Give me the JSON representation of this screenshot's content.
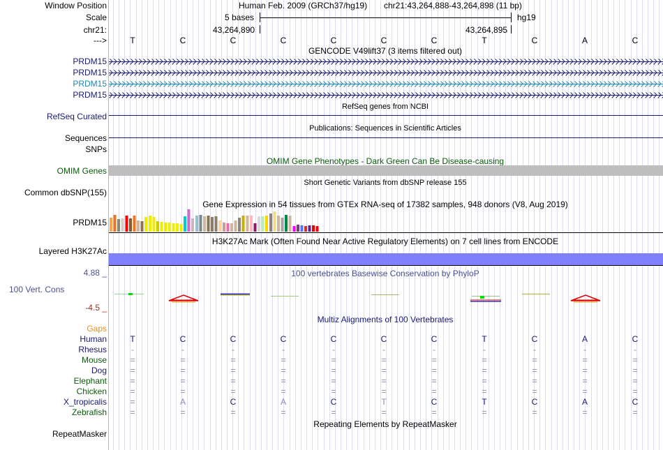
{
  "header": {
    "window_label": "Window Position",
    "scale_label": "Scale",
    "chrom_label": "chr21:",
    "arrow_label": "--->",
    "assembly_text": "Human Feb. 2009 (GRCh37/hg19)",
    "position_text": "chr21:43,264,888-43,264,898 (11 bp)",
    "scale_text": "5 bases",
    "scale_db": "hg19",
    "coord_left": "43,264,890",
    "coord_right": "43,264,895"
  },
  "bases": [
    "T",
    "C",
    "C",
    "C",
    "C",
    "C",
    "C",
    "T",
    "C",
    "A",
    "C"
  ],
  "tracks": {
    "gencode_title": "GENCODE V49lift37 (3 items filtered out)",
    "gencode_items": [
      "PRDM15",
      "PRDM15",
      "PRDM15",
      "PRDM15"
    ],
    "refseq_label": "RefSeq Curated",
    "refseq_title": "RefSeq genes from NCBI",
    "sequences_label": "Sequences",
    "pubs_title": "Publications: Sequences in Scientific Articles",
    "snps_label": "SNPs",
    "omim_title": "OMIM Gene Phenotypes - Dark Green Can Be Disease-causing",
    "omim_label": "OMIM Genes",
    "dbsnp_title": "Short Genetic Variants from dbSNP release 155",
    "dbsnp_label": "Common dbSNP(155)",
    "gtex_title": "Gene Expression in 54 tissues from GTEx RNA-seq of 17382 samples, 948 donors (V8, Aug 2019)",
    "gtex_label": "PRDM15",
    "h3k27_title": "H3K27Ac Mark (Often Found Near Active Regulatory Elements) on 7 cell lines from ENCODE",
    "h3k27_label": "Layered H3K27Ac",
    "cons_title": "100 vertebrates Basewise Conservation by PhyloP",
    "cons_label": "100 Vert. Cons",
    "cons_max": "4.88 _",
    "cons_min": "-4.5 _",
    "multiz_title": "Multiz Alignments of 100 Vertebrates",
    "gaps_label": "Gaps",
    "repeat_title": "Repeating Elements by RepeatMasker",
    "repeat_label": "RepeatMasker"
  },
  "alignment": [
    {
      "species": "Human",
      "seq": [
        "T",
        "C",
        "C",
        "C",
        "C",
        "C",
        "C",
        "T",
        "C",
        "A",
        "C"
      ]
    },
    {
      "species": "Rhesus",
      "seq": [
        "-",
        "-",
        "-",
        "-",
        "-",
        "-",
        "-",
        "-",
        "-",
        "-",
        "-"
      ]
    },
    {
      "species": "Mouse",
      "seq": [
        "=",
        "=",
        "=",
        "=",
        "=",
        "=",
        "=",
        "=",
        "=",
        "=",
        "="
      ]
    },
    {
      "species": "Dog",
      "seq": [
        "=",
        "=",
        "=",
        "=",
        "=",
        "=",
        "=",
        "=",
        "=",
        "=",
        "="
      ]
    },
    {
      "species": "Elephant",
      "seq": [
        "=",
        "=",
        "=",
        "=",
        "=",
        "=",
        "=",
        "=",
        "=",
        "=",
        "="
      ]
    },
    {
      "species": "Chicken",
      "seq": [
        "=",
        "=",
        "=",
        "=",
        "=",
        "=",
        "=",
        "=",
        "=",
        "=",
        "="
      ]
    },
    {
      "species": "X_tropicalis",
      "seq": [
        "=",
        "A",
        "C",
        "A",
        "C",
        "T",
        "C",
        "T",
        "C",
        "A",
        "C"
      ]
    },
    {
      "species": "Zebrafish",
      "seq": [
        "=",
        "=",
        "=",
        "=",
        "=",
        "=",
        "=",
        "=",
        "=",
        "=",
        "="
      ]
    }
  ],
  "colors": {
    "navy": "#191970",
    "green": "#0b5a0b",
    "omim_bar": "#bebebe",
    "h3k27_bar": "#8080ff",
    "gtex": [
      "#ffa54f",
      "#ee7621",
      "#8b8878",
      "#cdcdc1",
      "#ff0000",
      "#8b5a2b",
      "#ee7621",
      "#cdb79e",
      "#8b7355",
      "#eeee00",
      "#eeee00",
      "#eeee00",
      "#cdcd00",
      "#eeee00",
      "#eeee00",
      "#eeee00",
      "#eeee00",
      "#eeee00",
      "#eeee00",
      "#00cdcd",
      "#cd69c9",
      "#cdb7b5",
      "#9ac0cd",
      "#7a8b8b",
      "#cdb79e",
      "#8b7355",
      "#8b7d6b",
      "#8b7d6b",
      "#ffd39b",
      "#cd9b9b",
      "#ee6aa7",
      "#cdb79e",
      "#cdb79e",
      "#8b8682",
      "#cdad00",
      "#cdb79e",
      "#ffb6c1",
      "#8b1c62",
      "#d9d9d9",
      "#b4eeb4",
      "#ffd700",
      "#8b8682",
      "#eedc82",
      "#cdb79e",
      "#a6a6a6",
      "#008b45",
      "#cdb79e",
      "#ff00ff",
      "#7a378b",
      "#4876ff",
      "#cd3333",
      "#68228b",
      "#ee0000",
      "#ff0000"
    ]
  },
  "gtex_values": [
    0.62,
    0.75,
    0.55,
    0.58,
    0.72,
    0.6,
    0.72,
    0.5,
    0.48,
    0.65,
    0.72,
    0.65,
    0.48,
    0.45,
    0.42,
    0.4,
    0.38,
    0.36,
    0.34,
    0.7,
    1.0,
    0.6,
    0.72,
    0.74,
    0.7,
    0.72,
    0.65,
    0.68,
    0.5,
    0.42,
    0.36,
    0.38,
    0.5,
    0.62,
    0.72,
    0.72,
    0.72,
    0.38,
    0.68,
    0.7,
    0.72,
    0.8,
    0.9,
    0.72,
    0.62,
    0.75,
    0.72,
    0.25,
    0.3,
    0.28,
    0.26,
    0.27,
    0.28,
    0.25
  ]
}
